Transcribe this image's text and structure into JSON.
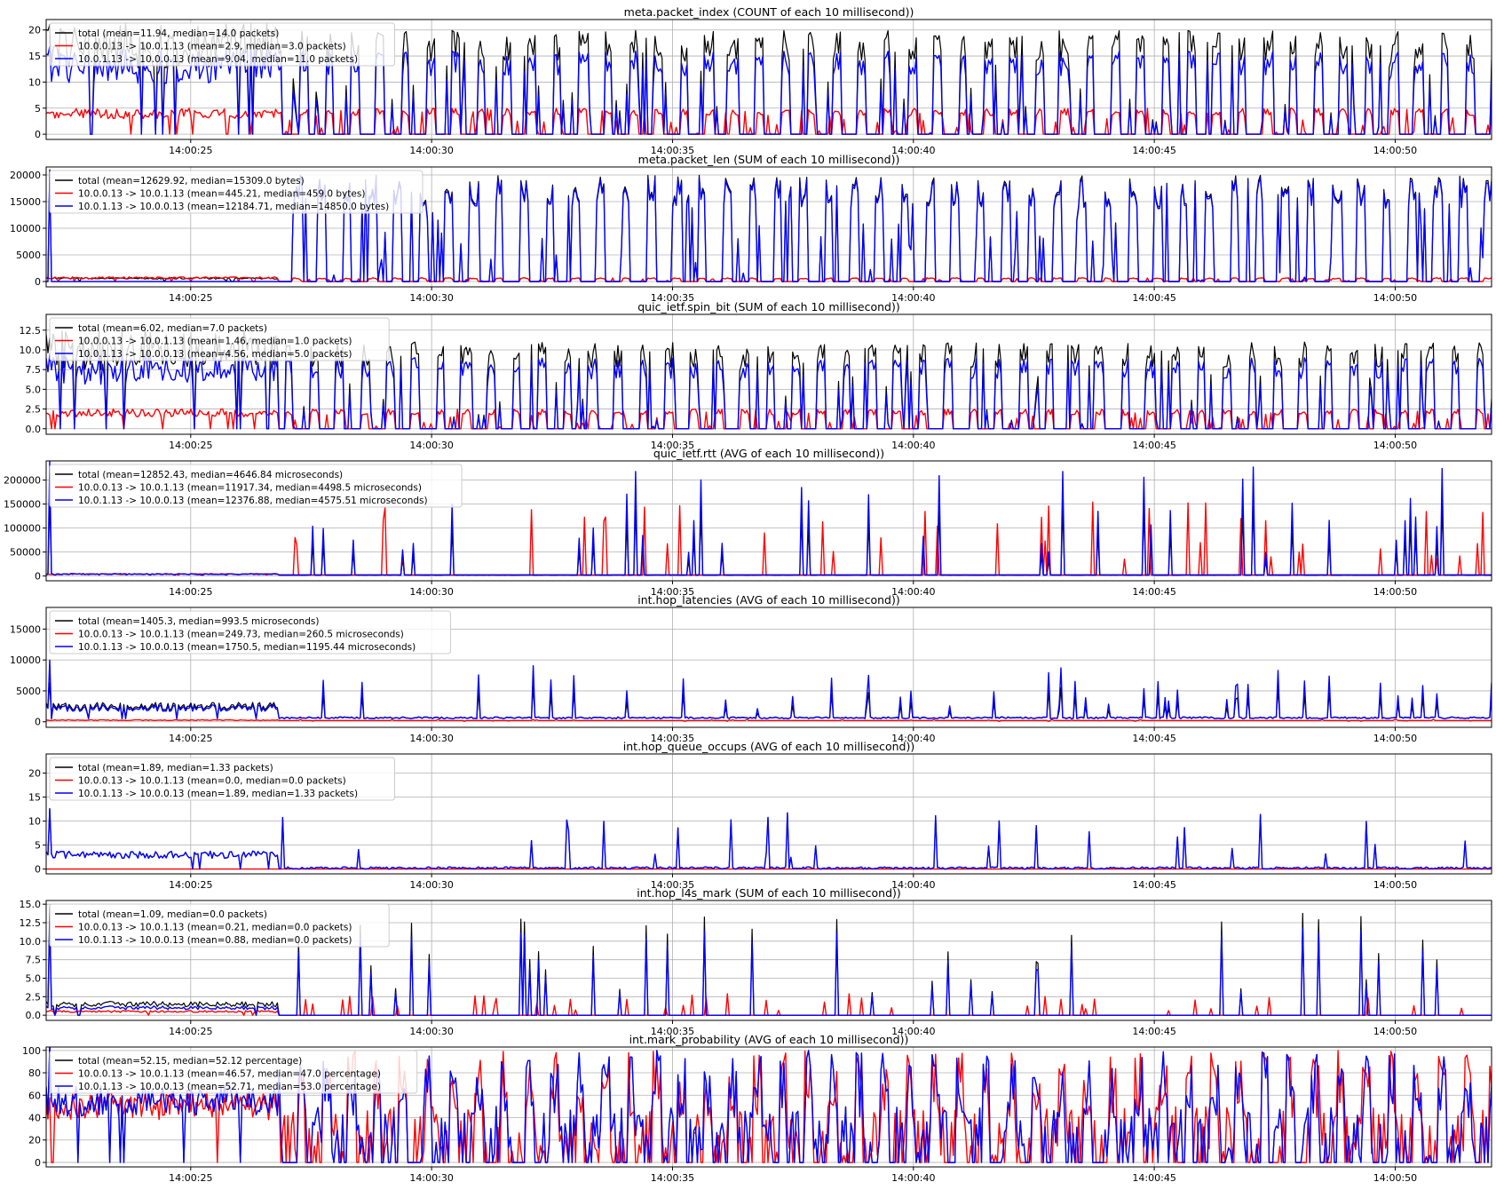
{
  "figure": {
    "x_ticks": [
      "14:00:25",
      "14:00:30",
      "14:00:35",
      "14:00:40",
      "14:00:45",
      "14:00:50"
    ],
    "x_range_seconds": [
      "14:00:22",
      "14:00:52"
    ],
    "colors": {
      "total": "#000000",
      "forward": "#ff0000",
      "reverse": "#0000ff",
      "grid": "#b0b0b0"
    }
  },
  "chart_data": [
    {
      "type": "line",
      "title": "meta.packet_index (COUNT of each 10 millisecond))",
      "yticks": [
        0,
        5,
        10,
        15,
        20
      ],
      "ylim": [
        -1,
        22
      ],
      "grid": true,
      "legend": "upper-left",
      "series": [
        {
          "name": "total (mean=11.94, median=14.0 packets)",
          "color": "#000000",
          "peak": 20,
          "base": 0,
          "early_level": 17,
          "mean": 11.94
        },
        {
          "name": "10.0.0.13 -> 10.0.1.13 (mean=2.9, median=3.0 packets)",
          "color": "#ff0000",
          "peak": 5,
          "base": 0,
          "early_level": 4,
          "mean": 2.9
        },
        {
          "name": "10.0.1.13 -> 10.0.0.13 (mean=9.04, median=11.0 packets)",
          "color": "#0000ff",
          "peak": 16,
          "base": 0,
          "early_level": 13,
          "mean": 9.04
        }
      ]
    },
    {
      "type": "line",
      "title": "meta.packet_len (SUM of each 10 millisecond))",
      "yticks": [
        0,
        5000,
        10000,
        15000,
        20000
      ],
      "ylim": [
        -1000,
        21500
      ],
      "grid": true,
      "legend": "upper-left",
      "series": [
        {
          "name": "total (mean=12629.92, median=15309.0 bytes)",
          "color": "#000000",
          "peak": 20000,
          "base": 0,
          "early_level": 600,
          "mean": 12629.92
        },
        {
          "name": "10.0.0.13 -> 10.0.1.13 (mean=445.21, median=459.0 bytes)",
          "color": "#ff0000",
          "peak": 700,
          "base": 0,
          "early_level": 700,
          "mean": 445.21
        },
        {
          "name": "10.0.1.13 -> 10.0.0.13 (mean=12184.71, median=14850.0 bytes)",
          "color": "#0000ff",
          "peak": 19500,
          "base": 0,
          "early_level": 0,
          "mean": 12184.71
        }
      ]
    },
    {
      "type": "line",
      "title": "quic_ietf.spin_bit (SUM of each 10 millisecond))",
      "yticks": [
        0.0,
        2.5,
        5.0,
        7.5,
        10.0,
        12.5
      ],
      "yticklabels": [
        "0.0",
        "2.5",
        "5.0",
        "7.5",
        "10.0",
        "12.5"
      ],
      "ylim": [
        -0.7,
        14.5
      ],
      "grid": true,
      "legend": "upper-left",
      "series": [
        {
          "name": "total (mean=6.02, median=7.0 packets)",
          "color": "#000000",
          "peak": 11,
          "base": 0,
          "early_level": 10,
          "mean": 6.02
        },
        {
          "name": "10.0.0.13 -> 10.0.1.13 (mean=1.46, median=1.0 packets)",
          "color": "#ff0000",
          "peak": 2.5,
          "base": 0,
          "early_level": 2,
          "mean": 1.46
        },
        {
          "name": "10.0.1.13 -> 10.0.0.13 (mean=4.56, median=5.0 packets)",
          "color": "#0000ff",
          "peak": 9,
          "base": 0,
          "early_level": 7.5,
          "mean": 4.56
        }
      ]
    },
    {
      "type": "line",
      "title": "quic_ietf.rtt (AVG of each 10 millisecond))",
      "yticks": [
        0,
        50000,
        100000,
        150000,
        200000
      ],
      "ylim": [
        -10000,
        240000
      ],
      "grid": true,
      "legend": "upper-left",
      "series": [
        {
          "name": "total (mean=12852.43, median=4646.84 microseconds)",
          "color": "#000000",
          "peak": 150000,
          "base": 2000,
          "early_level": 4000,
          "mean": 12852.43
        },
        {
          "name": "10.0.0.13 -> 10.0.1.13 (mean=11917.34, median=4498.5 microseconds)",
          "color": "#ff0000",
          "peak": 160000,
          "base": 2000,
          "early_level": 4000,
          "mean": 11917.34
        },
        {
          "name": "10.0.1.13 -> 10.0.0.13 (mean=12376.88, median=4575.51 microseconds)",
          "color": "#0000ff",
          "peak": 230000,
          "base": 2000,
          "early_level": 4000,
          "mean": 12376.88
        }
      ]
    },
    {
      "type": "line",
      "title": "int.hop_latencies (AVG of each 10 millisecond))",
      "yticks": [
        0,
        5000,
        10000,
        15000
      ],
      "ylim": [
        -900,
        18500
      ],
      "grid": true,
      "legend": "upper-left",
      "series": [
        {
          "name": "total (mean=1405.3, median=993.5 microseconds)",
          "color": "#000000",
          "peak": 6000,
          "base": 500,
          "early_level": 2500,
          "mean": 1405.3
        },
        {
          "name": "10.0.0.13 -> 10.0.1.13 (mean=249.73, median=260.5 microseconds)",
          "color": "#ff0000",
          "peak": 400,
          "base": 200,
          "early_level": 260,
          "mean": 249.73
        },
        {
          "name": "10.0.1.13 -> 10.0.0.13 (mean=1750.5, median=1195.44 microseconds)",
          "color": "#0000ff",
          "peak": 9500,
          "base": 500,
          "early_level": 2200,
          "mean": 1750.5
        }
      ]
    },
    {
      "type": "line",
      "title": "int.hop_queue_occups (AVG of each 10 millisecond))",
      "yticks": [
        0,
        5,
        10,
        15,
        20
      ],
      "ylim": [
        -1,
        24
      ],
      "grid": true,
      "legend": "upper-left",
      "series": [
        {
          "name": "total (mean=1.89, median=1.33 packets)",
          "color": "#000000",
          "peak": 12,
          "base": 0,
          "early_level": 3,
          "mean": 1.89
        },
        {
          "name": "10.0.0.13 -> 10.0.1.13 (mean=0.0, median=0.0 packets)",
          "color": "#ff0000",
          "peak": 0,
          "base": 0,
          "early_level": 0,
          "mean": 0.0
        },
        {
          "name": "10.0.1.13 -> 10.0.0.13 (mean=1.89, median=1.33 packets)",
          "color": "#0000ff",
          "peak": 12,
          "base": 0,
          "early_level": 3,
          "mean": 1.89
        }
      ]
    },
    {
      "type": "line",
      "title": "int.hop_l4s_mark (SUM of each 10 millisecond))",
      "yticks": [
        0.0,
        2.5,
        5.0,
        7.5,
        10.0,
        12.5,
        15.0
      ],
      "yticklabels": [
        "0.0",
        "2.5",
        "5.0",
        "7.5",
        "10.0",
        "12.5",
        "15.0"
      ],
      "ylim": [
        -0.7,
        15.5
      ],
      "grid": true,
      "legend": "upper-left",
      "series": [
        {
          "name": "total (mean=1.09, median=0.0 packets)",
          "color": "#000000",
          "peak": 14,
          "base": 0,
          "early_level": 1.5,
          "mean": 1.09
        },
        {
          "name": "10.0.0.13 -> 10.0.1.13 (mean=0.21, median=0.0 packets)",
          "color": "#ff0000",
          "peak": 3,
          "base": 0,
          "early_level": 0.5,
          "mean": 0.21
        },
        {
          "name": "10.0.1.13 -> 10.0.0.13 (mean=0.88, median=0.0 packets)",
          "color": "#0000ff",
          "peak": 12,
          "base": 0,
          "early_level": 1,
          "mean": 0.88
        }
      ]
    },
    {
      "type": "line",
      "title": "int.mark_probability (AVG of each 10 millisecond))",
      "yticks": [
        0,
        20,
        40,
        60,
        80,
        100
      ],
      "ylim": [
        -4,
        103
      ],
      "grid": true,
      "legend": "upper-left",
      "series": [
        {
          "name": "total (mean=52.15, median=52.12 percentage)",
          "color": "#000000",
          "peak": 100,
          "base": 0,
          "early_level": 55,
          "mean": 52.15
        },
        {
          "name": "10.0.0.13 -> 10.0.1.13 (mean=46.57, median=47.0 percentage)",
          "color": "#ff0000",
          "peak": 100,
          "base": 0,
          "early_level": 50,
          "mean": 46.57
        },
        {
          "name": "10.0.1.13 -> 10.0.0.13 (mean=52.71, median=53.0 percentage)",
          "color": "#0000ff",
          "peak": 100,
          "base": 0,
          "early_level": 55,
          "mean": 52.71
        }
      ]
    }
  ]
}
